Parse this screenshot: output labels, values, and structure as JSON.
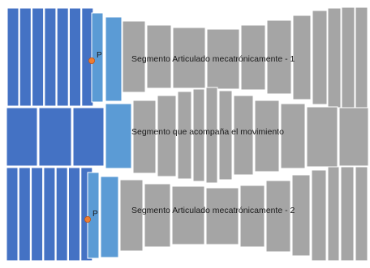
{
  "diagram": {
    "rows": [
      {
        "label": "Segmento Articulado mecatrónicamente - 1",
        "point_label": "P"
      },
      {
        "label": "Segmento que acompaña el movimiento"
      },
      {
        "label": "Segmento Articulado mecatrónicamente - 2",
        "point_label": "P"
      }
    ],
    "colors": {
      "dark_blue": "#4472C4",
      "light_blue": "#5B9BD5",
      "gray": "#A5A5A5",
      "outline": "#ffffff",
      "point": "#ED7D31"
    }
  }
}
